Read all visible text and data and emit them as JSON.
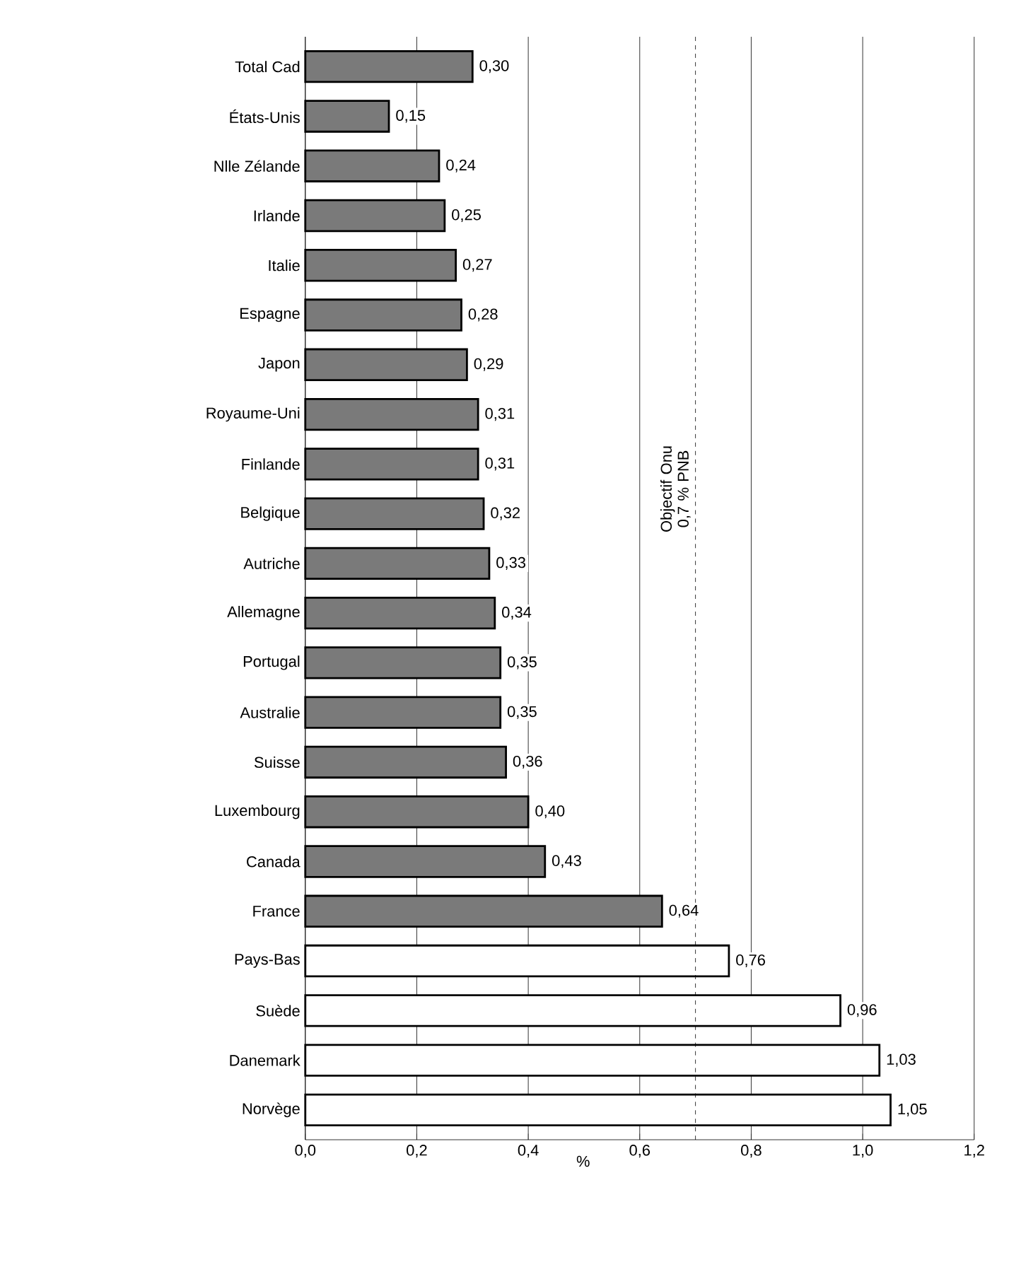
{
  "chart_data": {
    "type": "bar",
    "orientation": "horizontal",
    "xlabel": "%",
    "categories": [
      "Total Cad",
      "États-Unis",
      "Nlle Zélande",
      "Irlande",
      "Italie",
      "Espagne",
      "Japon",
      "Royaume-Uni",
      "Finlande",
      "Belgique",
      "Autriche",
      "Allemagne",
      "Portugal",
      "Australie",
      "Suisse",
      "Luxembourg",
      "Canada",
      "France",
      "Pays-Bas",
      "Suède",
      "Danemark",
      "Norvège"
    ],
    "values": [
      0.3,
      0.15,
      0.24,
      0.25,
      0.27,
      0.28,
      0.29,
      0.31,
      0.31,
      0.32,
      0.33,
      0.34,
      0.35,
      0.35,
      0.36,
      0.4,
      0.43,
      0.64,
      0.76,
      0.96,
      1.03,
      1.05
    ],
    "value_labels": [
      "0,30",
      "0,15",
      "0,24",
      "0,25",
      "0,27",
      "0,28",
      "0,29",
      "0,31",
      "0,31",
      "0,32",
      "0,33",
      "0,34",
      "0,35",
      "0,35",
      "0,36",
      "0,40",
      "0,43",
      "0,64",
      "0,76",
      "0,96",
      "1,03",
      "1,05"
    ],
    "colors": [
      "#7a7a7a",
      "#7a7a7a",
      "#7a7a7a",
      "#7a7a7a",
      "#7a7a7a",
      "#7a7a7a",
      "#7a7a7a",
      "#7a7a7a",
      "#7a7a7a",
      "#7a7a7a",
      "#7a7a7a",
      "#7a7a7a",
      "#7a7a7a",
      "#7a7a7a",
      "#7a7a7a",
      "#7a7a7a",
      "#7a7a7a",
      "#7a7a7a",
      "#ffffff",
      "#ffffff",
      "#ffffff",
      "#ffffff"
    ],
    "xlim": [
      0,
      1.2
    ],
    "xticks": [
      {
        "value": 0,
        "label": "0,0"
      },
      {
        "value": 0.2,
        "label": "0,2"
      },
      {
        "value": 0.4,
        "label": "0,4"
      },
      {
        "value": 0.6,
        "label": "0,6"
      },
      {
        "value": 0.8,
        "label": "0,8"
      },
      {
        "value": 1.0,
        "label": "1,0"
      },
      {
        "value": 1.2,
        "label": "1,2"
      }
    ],
    "grid": "x",
    "ref_lines": [
      {
        "axis": "x",
        "value": 0.7,
        "label": "Objectif Onu 0,7 % PNB",
        "line_style": "dashed"
      }
    ]
  }
}
